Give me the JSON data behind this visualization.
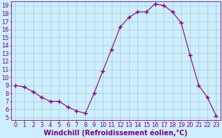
{
  "x": [
    0,
    1,
    2,
    3,
    4,
    5,
    6,
    7,
    8,
    9,
    10,
    11,
    12,
    13,
    14,
    15,
    16,
    17,
    18,
    19,
    20,
    21,
    22,
    23
  ],
  "y": [
    9.0,
    8.8,
    8.2,
    7.5,
    7.0,
    7.0,
    6.3,
    5.8,
    5.5,
    8.0,
    10.8,
    13.5,
    16.3,
    17.5,
    18.2,
    18.2,
    19.2,
    19.0,
    18.2,
    16.8,
    12.8,
    9.0,
    7.5,
    5.2
  ],
  "line_color": "#800080",
  "marker": "+",
  "marker_size": 4,
  "marker_lw": 1.0,
  "lw": 0.8,
  "bg_color": "#cceeff",
  "grid_color": "#aacccc",
  "xlabel": "Windchill (Refroidissement éolien,°C)",
  "ylabel": "",
  "xlim_min": -0.5,
  "xlim_max": 23.5,
  "ylim_min": 4.7,
  "ylim_max": 19.5,
  "yticks": [
    5,
    6,
    7,
    8,
    9,
    10,
    11,
    12,
    13,
    14,
    15,
    16,
    17,
    18,
    19
  ],
  "xticks": [
    0,
    1,
    2,
    3,
    4,
    5,
    6,
    7,
    8,
    9,
    10,
    11,
    12,
    13,
    14,
    15,
    16,
    17,
    18,
    19,
    20,
    21,
    22,
    23
  ],
  "tick_color": "#800080",
  "label_color": "#800080",
  "axis_color": "#800080",
  "tick_fontsize": 6,
  "xlabel_fontsize": 7
}
